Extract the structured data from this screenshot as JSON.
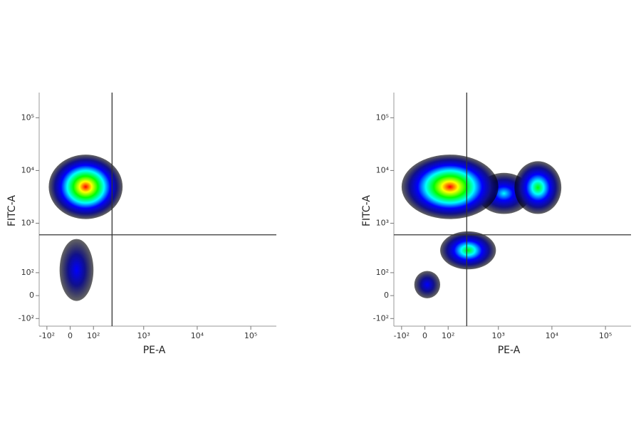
{
  "chart_data": [
    {
      "type": "density",
      "x_label": "PE-A",
      "y_label": "FITC-A",
      "scale": "biexponential",
      "xlim": [
        -150,
        300000
      ],
      "ylim": [
        -150,
        300000
      ],
      "xticks": [
        {
          "value": -100,
          "label": "-10²"
        },
        0,
        {
          "value": 100,
          "label": "10²"
        },
        {
          "value": 1000,
          "label": "10³"
        },
        {
          "value": 10000,
          "label": "10⁴"
        },
        {
          "value": 100000,
          "label": "10⁵"
        }
      ],
      "yticks": [
        {
          "value": -100,
          "label": "-10²"
        },
        0,
        {
          "value": 100,
          "label": "10²"
        },
        {
          "value": 1000,
          "label": "10³"
        },
        {
          "value": 10000,
          "label": "10⁴"
        },
        {
          "value": 100000,
          "label": "10⁵"
        }
      ],
      "gate": {
        "x": 250,
        "y": 600
      },
      "colormap": [
        "#ff0000",
        "#ffff00",
        "#00ff00",
        "#00ffff",
        "#0000ff",
        "#10108c",
        "#000000"
      ],
      "clusters": [
        {
          "xrange": [
            -90,
            400
          ],
          "yrange": [
            1200,
            20000
          ],
          "color": "#ff0000"
        },
        {
          "xrange": [
            -40,
            100
          ],
          "yrange": [
            -20,
            500
          ],
          "color": "#0000ff"
        }
      ]
    },
    {
      "type": "density",
      "x_label": "PE-A",
      "y_label": "FITC-A",
      "scale": "biexponential",
      "xlim": [
        -150,
        300000
      ],
      "ylim": [
        -150,
        300000
      ],
      "xticks": [
        {
          "value": -100,
          "label": "-10²"
        },
        0,
        {
          "value": 100,
          "label": "10²"
        },
        {
          "value": 1000,
          "label": "10³"
        },
        {
          "value": 10000,
          "label": "10⁴"
        },
        {
          "value": 100000,
          "label": "10⁵"
        }
      ],
      "yticks": [
        {
          "value": -100,
          "label": "-10²"
        },
        0,
        {
          "value": 100,
          "label": "10²"
        },
        {
          "value": 1000,
          "label": "10³"
        },
        {
          "value": 10000,
          "label": "10⁴"
        },
        {
          "value": 100000,
          "label": "10⁵"
        }
      ],
      "gate": {
        "x": 250,
        "y": 600
      },
      "colormap": [
        "#ff0000",
        "#ffff00",
        "#00ff00",
        "#00ffff",
        "#0000ff",
        "#10108c",
        "#000000"
      ],
      "clusters": [
        {
          "xrange": [
            400,
            4000
          ],
          "yrange": [
            1500,
            9000
          ],
          "color": "#00ffff"
        },
        {
          "xrange": [
            -100,
            1000
          ],
          "yrange": [
            1200,
            20000
          ],
          "color": "#ff0000"
        },
        {
          "xrange": [
            2000,
            15000
          ],
          "yrange": [
            1500,
            15000
          ],
          "color": "#00ff00"
        },
        {
          "xrange": [
            60,
            900
          ],
          "yrange": [
            120,
            700
          ],
          "color": "#00ff00"
        },
        {
          "xrange": [
            -40,
            60
          ],
          "yrange": [
            -10,
            110
          ],
          "color": "#0000ff"
        }
      ]
    }
  ]
}
